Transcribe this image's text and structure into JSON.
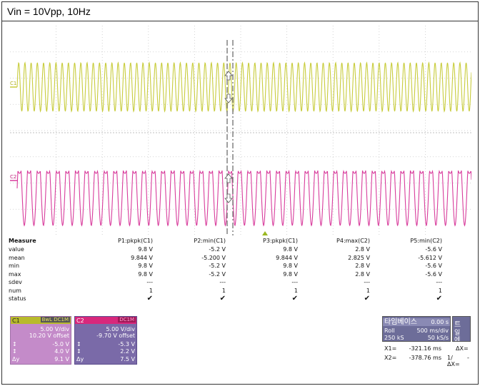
{
  "caption": "Vin = 10Vpp, 10Hz",
  "scope": {
    "c1_label": "C1",
    "c2_label": "C2",
    "c1_color": "#c8cc3c",
    "c2_color": "#d83c9c"
  },
  "measure": {
    "title": "Measure",
    "row_labels": [
      "value",
      "mean",
      "min",
      "max",
      "sdev",
      "num",
      "status"
    ],
    "columns": [
      {
        "header": "P1:pkpk(C1)",
        "value": "9.8 V",
        "mean": "9.844 V",
        "min": "9.8 V",
        "max": "9.8 V",
        "sdev": "---",
        "num": "1",
        "status": "✔"
      },
      {
        "header": "P2:min(C1)",
        "value": "-5.2 V",
        "mean": "-5.200 V",
        "min": "-5.2 V",
        "max": "-5.2 V",
        "sdev": "---",
        "num": "1",
        "status": "✔"
      },
      {
        "header": "P3:pkpk(C1)",
        "value": "9.8 V",
        "mean": "9.844 V",
        "min": "9.8 V",
        "max": "9.8 V",
        "sdev": "---",
        "num": "1",
        "status": "✔"
      },
      {
        "header": "P4:max(C2)",
        "value": "2.8 V",
        "mean": "2.825 V",
        "min": "2.8 V",
        "max": "2.8 V",
        "sdev": "---",
        "num": "1",
        "status": "✔"
      },
      {
        "header": "P5:min(C2)",
        "value": "-5.6 V",
        "mean": "-5.612 V",
        "min": "-5.6 V",
        "max": "-5.6 V",
        "sdev": "---",
        "num": "1",
        "status": "✔"
      }
    ]
  },
  "c1_panel": {
    "name": "C1",
    "coupling": "BwL DC1M",
    "vdiv": "5.00 V/div",
    "offset": "10.20 V offset",
    "r1_sym": "↕",
    "r1_val": "-5.0 V",
    "r2_sym": "↕",
    "r2_val": "4.0 V",
    "r3_sym": "Δy",
    "r3_val": "9.1 V"
  },
  "c2_panel": {
    "name": "C2",
    "coupling": "DC1M",
    "vdiv": "5.00 V/div",
    "offset": "-9.70 V offset",
    "r1_sym": "↕",
    "r1_val": "-5.3 V",
    "r2_sym": "↕",
    "r2_val": "2.2 V",
    "r3_sym": "Δy",
    "r3_val": "7.5 V"
  },
  "timebase": {
    "title": "타임베이스",
    "delay": "0.00 s",
    "mode": "Roll",
    "tdiv": "500 ms/div",
    "samples": "250 kS",
    "rate": "50 kS/s",
    "extra_title": "트",
    "extra_l1": "일",
    "extra_l2": "에"
  },
  "cursors": {
    "x1_label": "X1=",
    "x1_val": "-321.16 ms",
    "dx_label": "ΔX=",
    "x2_label": "X2=",
    "x2_val": "-378.76 ms",
    "inv_label": "1/ΔX=",
    "inv_val": "-"
  }
}
